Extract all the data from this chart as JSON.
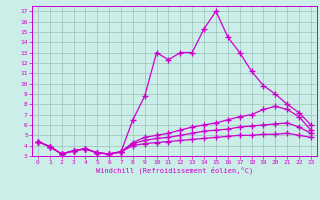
{
  "xlabel": "Windchill (Refroidissement éolien,°C)",
  "background_color": "#cceee8",
  "grid_color": "#9bbfba",
  "line_color": "#cc00cc",
  "xlim": [
    -0.5,
    23.5
  ],
  "ylim": [
    3,
    17.5
  ],
  "xticks": [
    0,
    1,
    2,
    3,
    4,
    5,
    6,
    7,
    8,
    9,
    10,
    11,
    12,
    13,
    14,
    15,
    16,
    17,
    18,
    19,
    20,
    21,
    22,
    23
  ],
  "yticks": [
    3,
    4,
    5,
    6,
    7,
    8,
    9,
    10,
    11,
    12,
    13,
    14,
    15,
    16,
    17
  ],
  "series": [
    [
      4.4,
      3.9,
      3.2,
      3.5,
      3.7,
      3.3,
      3.2,
      3.4,
      6.5,
      8.8,
      13.0,
      12.3,
      13.0,
      13.0,
      15.3,
      17.0,
      14.5,
      13.0,
      11.2,
      9.8,
      9.0,
      8.0,
      7.2,
      6.0
    ],
    [
      4.4,
      3.9,
      3.2,
      3.5,
      3.7,
      3.3,
      3.2,
      3.4,
      4.3,
      4.8,
      5.0,
      5.2,
      5.5,
      5.8,
      6.0,
      6.2,
      6.5,
      6.8,
      7.0,
      7.5,
      7.8,
      7.5,
      6.8,
      5.5
    ],
    [
      4.4,
      3.9,
      3.2,
      3.5,
      3.7,
      3.3,
      3.2,
      3.4,
      4.2,
      4.5,
      4.7,
      4.8,
      5.0,
      5.2,
      5.4,
      5.5,
      5.6,
      5.8,
      5.9,
      6.0,
      6.1,
      6.2,
      5.8,
      5.2
    ],
    [
      4.4,
      3.9,
      3.2,
      3.5,
      3.7,
      3.3,
      3.2,
      3.4,
      4.0,
      4.2,
      4.3,
      4.4,
      4.5,
      4.6,
      4.7,
      4.8,
      4.9,
      5.0,
      5.0,
      5.1,
      5.1,
      5.2,
      5.0,
      4.8
    ]
  ]
}
